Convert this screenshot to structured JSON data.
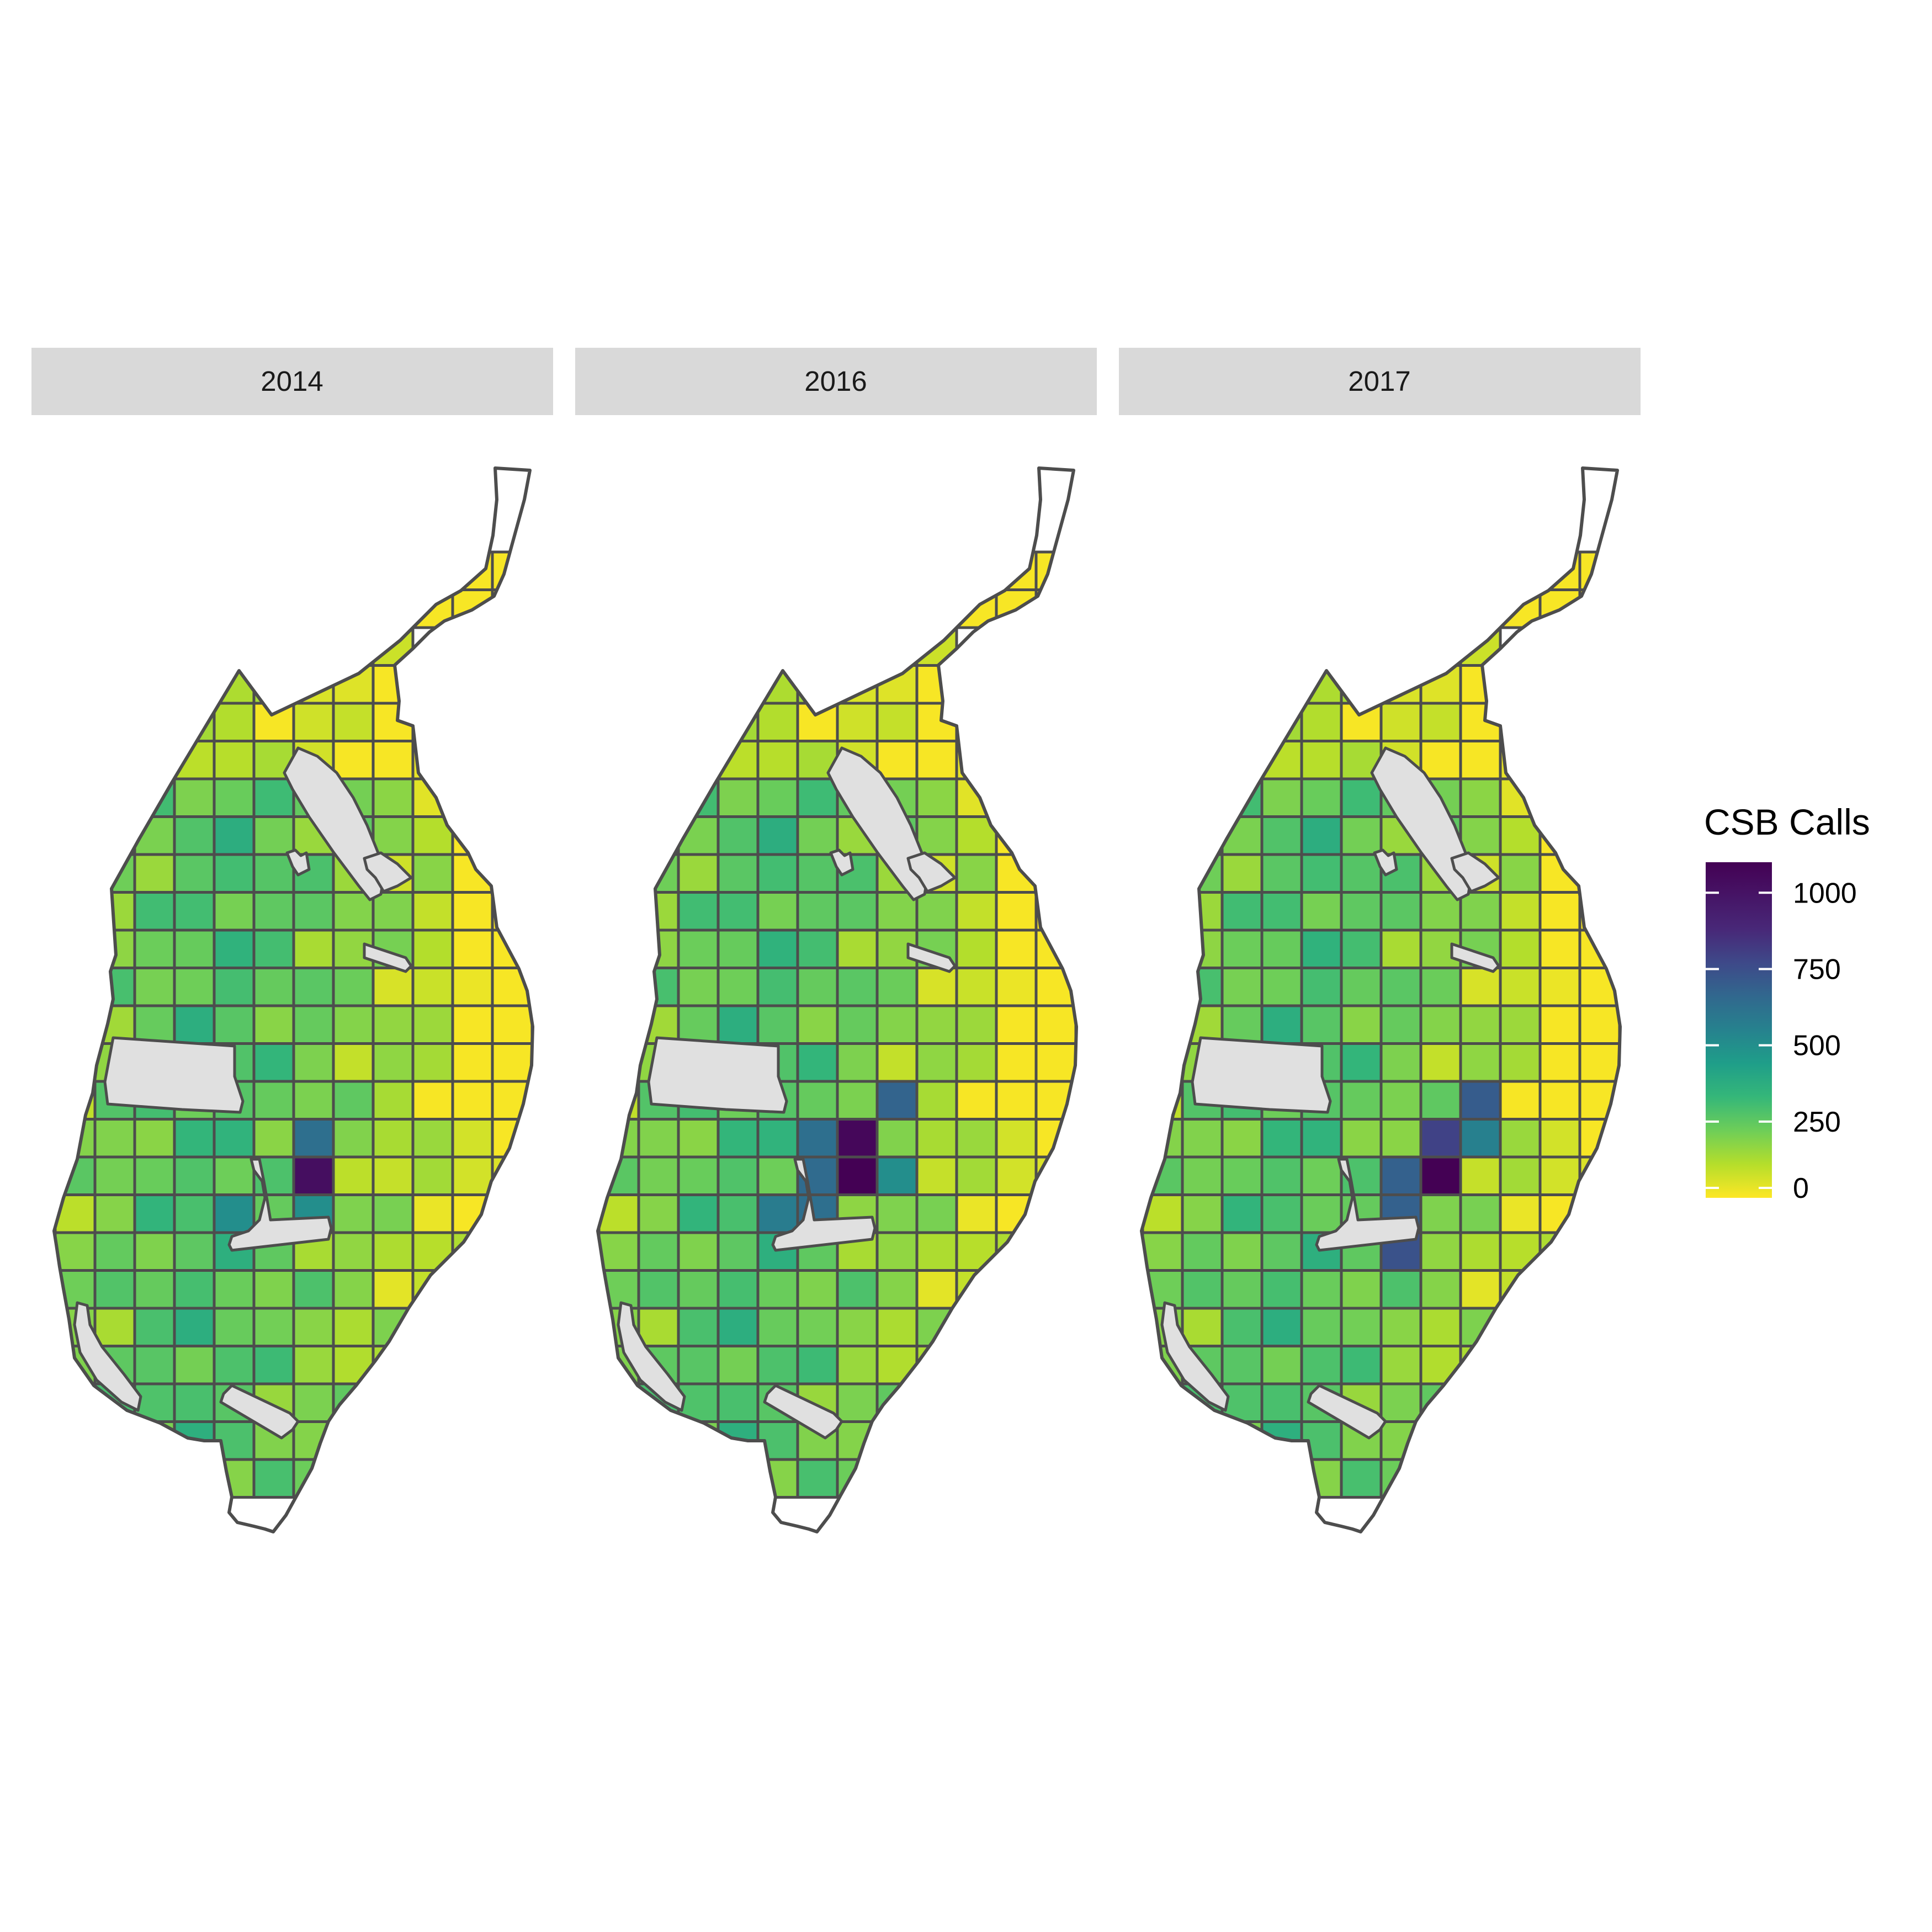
{
  "facets": [
    {
      "label": "2014",
      "hot": [
        [
          6,
          11,
          1060
        ],
        [
          6,
          10,
          700
        ],
        [
          4,
          12,
          560
        ],
        [
          6,
          12,
          560
        ]
      ]
    },
    {
      "label": "2016",
      "hot": [
        [
          6,
          10,
          1080
        ],
        [
          6,
          11,
          1100
        ],
        [
          7,
          9,
          750
        ],
        [
          5,
          11,
          720
        ],
        [
          5,
          10,
          700
        ],
        [
          4,
          12,
          640
        ],
        [
          5,
          12,
          700
        ],
        [
          7,
          11,
          560
        ]
      ]
    },
    {
      "label": "2017",
      "hot": [
        [
          7,
          11,
          1100
        ],
        [
          7,
          10,
          880
        ],
        [
          8,
          9,
          780
        ],
        [
          6,
          11,
          760
        ],
        [
          6,
          12,
          760
        ],
        [
          6,
          13,
          820
        ],
        [
          8,
          10,
          620
        ]
      ]
    }
  ],
  "legend": {
    "title": "CSB Calls",
    "ticks": [
      "0",
      "250",
      "500",
      "750",
      "1000"
    ],
    "tick_values": [
      0,
      250,
      500,
      750,
      1000
    ],
    "max": 1100,
    "palette": "viridis (reversed: yellow = low, purple = high)"
  },
  "colors": {
    "strip_bg": "#d9d9d9",
    "cell_border": "#4d4d4d",
    "exclusion_fill": "#e0e0e0"
  }
}
